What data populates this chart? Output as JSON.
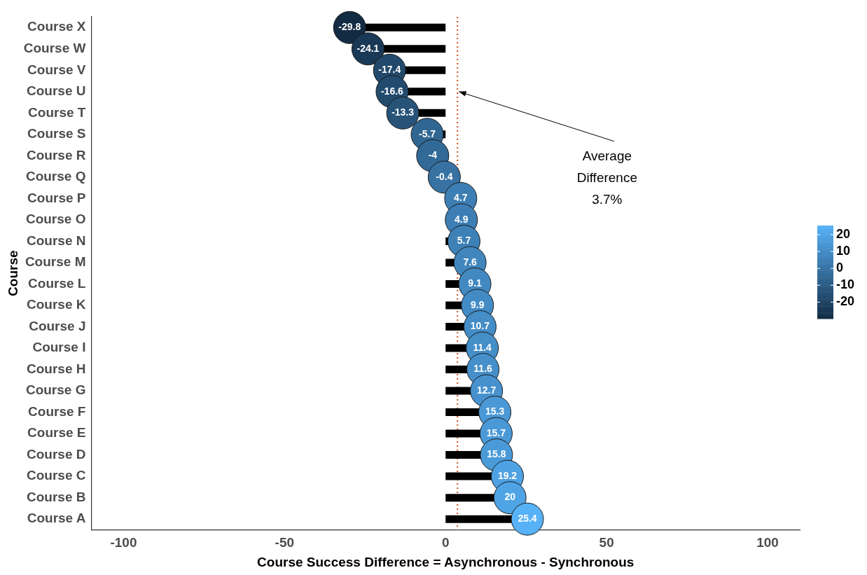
{
  "chart_data": {
    "type": "lollipop",
    "orientation": "horizontal",
    "xlabel": "Course Success Difference = Asynchronous - Synchronous",
    "ylabel": "Course",
    "categories": [
      "Course X",
      "Course W",
      "Course V",
      "Course U",
      "Course T",
      "Course S",
      "Course R",
      "Course Q",
      "Course P",
      "Course O",
      "Course N",
      "Course M",
      "Course L",
      "Course K",
      "Course J",
      "Course I",
      "Course H",
      "Course G",
      "Course F",
      "Course E",
      "Course D",
      "Course C",
      "Course B",
      "Course A"
    ],
    "values": [
      -29.8,
      -24.1,
      -17.4,
      -16.6,
      -13.3,
      -5.7,
      -4,
      -0.4,
      4.7,
      4.9,
      5.7,
      7.6,
      9.1,
      9.9,
      10.7,
      11.4,
      11.6,
      12.7,
      15.3,
      15.7,
      15.8,
      19.2,
      20,
      25.4
    ],
    "cvalues": [
      -29.8,
      -24.1,
      -17.4,
      -16.6,
      -13.3,
      -5.7,
      -4,
      -0.4,
      4.7,
      4.9,
      5.7,
      7.6,
      9.1,
      9.9,
      10.7,
      11.4,
      11.6,
      12.7,
      15.3,
      15.7,
      15.8,
      19.2,
      20,
      25.4
    ],
    "clim": [
      -29.8,
      25.4
    ],
    "cticks": [
      -20,
      -10,
      0,
      10,
      20
    ],
    "xlim": [
      -110,
      110
    ],
    "xticks": [
      -100,
      -50,
      0,
      50,
      100
    ],
    "ref_lines": [
      {
        "axis": "x",
        "value": 3.7,
        "color": "#d2501e",
        "line_style": "dotted"
      }
    ],
    "annotations": [
      {
        "text": "Average Difference 3.7%",
        "x": 3.7,
        "y": "Course U"
      }
    ],
    "data_labels": true,
    "marker": "circle",
    "grid": false,
    "legend": false
  }
}
